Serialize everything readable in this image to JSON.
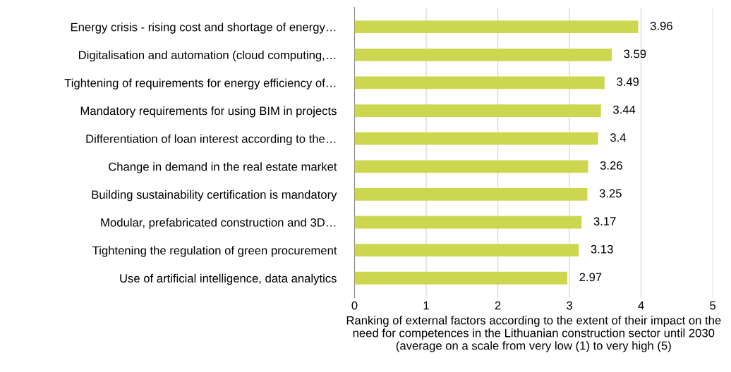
{
  "chart_data": {
    "type": "bar",
    "orientation": "horizontal",
    "categories": [
      "Energy crisis - rising cost and shortage of energy…",
      "Digitalisation and automation (cloud computing,…",
      "Tightening of requirements for energy efficiency of…",
      "Mandatory requirements for using BIM in projects",
      "Differentiation of loan interest according to the…",
      "Change in demand in the real estate market",
      "Building sustainability certification is mandatory",
      "Modular, prefabricated construction and 3D…",
      "Tightening the regulation of green procurement",
      "Use of artificial intelligence, data analytics"
    ],
    "values": [
      3.96,
      3.59,
      3.49,
      3.44,
      3.4,
      3.26,
      3.25,
      3.17,
      3.13,
      2.97
    ],
    "color": "#ccd64f",
    "xlim": [
      0,
      5
    ],
    "xticks": [
      0,
      1,
      2,
      3,
      4,
      5
    ],
    "grid": "x",
    "data_labels": true,
    "xlabel": "Ranking of external factors according to the extent of their impact on the need for competences in the Lithuanian construction sector until 2030 (average on a scale from very low (1) to very high (5)"
  }
}
